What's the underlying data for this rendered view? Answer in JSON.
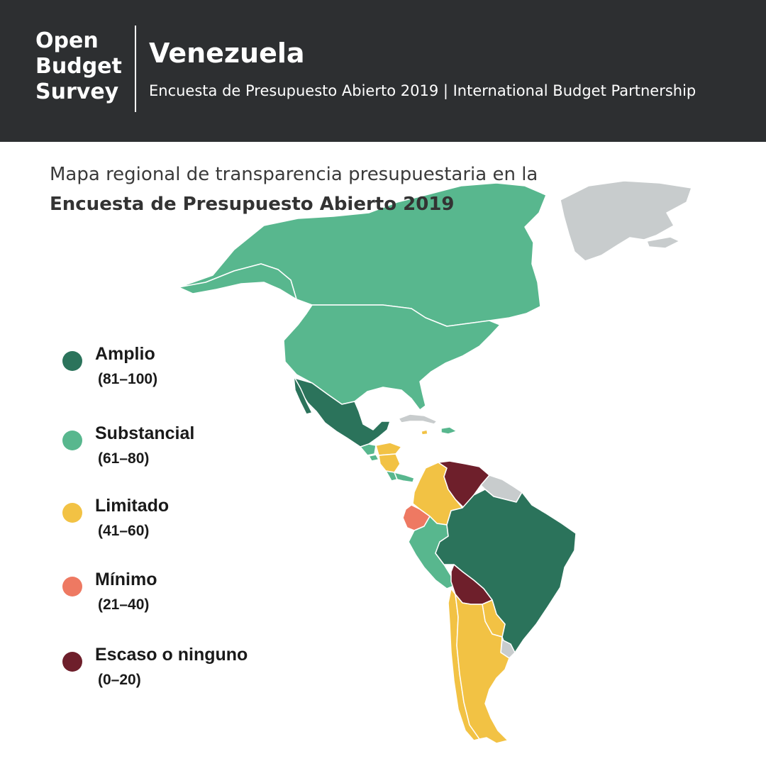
{
  "header": {
    "logo_lines": [
      "Open",
      "Budget",
      "Survey"
    ],
    "country": "Venezuela",
    "subtitle": "Encuesta de Presupuesto Abierto 2019 | International Budget Partnership"
  },
  "map": {
    "title_line1": "Mapa regional de transparencia  presupuestaria en la",
    "title_line2": "Encuesta de Presupuesto Abierto 2019"
  },
  "legend": [
    {
      "label": "Amplio",
      "range": "(81–100)",
      "color": "#2b735b"
    },
    {
      "label": "Substancial",
      "range": "(61–80)",
      "color": "#58b78e"
    },
    {
      "label": "Limitado",
      "range": "(41–60)",
      "color": "#f2c244"
    },
    {
      "label": "Mínimo",
      "range": "(21–40)",
      "color": "#ee7962"
    },
    {
      "label": "Escaso o ninguno",
      "range": "(0–20)",
      "color": "#6e1f2b"
    }
  ],
  "colors": {
    "header_bg": "#2d2f31",
    "no_data": "#c8cccd",
    "border": "#ffffff"
  },
  "regions": [
    {
      "name": "Greenland",
      "category": "no_data"
    },
    {
      "name": "Canada",
      "category": "Substancial"
    },
    {
      "name": "United States",
      "category": "Substancial"
    },
    {
      "name": "Mexico",
      "category": "Amplio"
    },
    {
      "name": "Guatemala",
      "category": "Substancial"
    },
    {
      "name": "Honduras",
      "category": "Limitado"
    },
    {
      "name": "El Salvador",
      "category": "Substancial"
    },
    {
      "name": "Nicaragua",
      "category": "Limitado"
    },
    {
      "name": "Costa Rica",
      "category": "Substancial"
    },
    {
      "name": "Cuba",
      "category": "no_data"
    },
    {
      "name": "Dominican Republic",
      "category": "Substancial"
    },
    {
      "name": "Colombia",
      "category": "Limitado"
    },
    {
      "name": "Venezuela",
      "category": "Escaso o ninguno"
    },
    {
      "name": "Guianas",
      "category": "no_data"
    },
    {
      "name": "Ecuador",
      "category": "Mínimo"
    },
    {
      "name": "Peru",
      "category": "Substancial"
    },
    {
      "name": "Brazil",
      "category": "Amplio"
    },
    {
      "name": "Bolivia",
      "category": "Escaso o ninguno"
    },
    {
      "name": "Paraguay",
      "category": "Limitado"
    },
    {
      "name": "Uruguay",
      "category": "no_data"
    },
    {
      "name": "Chile",
      "category": "Limitado"
    },
    {
      "name": "Argentina",
      "category": "Limitado"
    }
  ]
}
